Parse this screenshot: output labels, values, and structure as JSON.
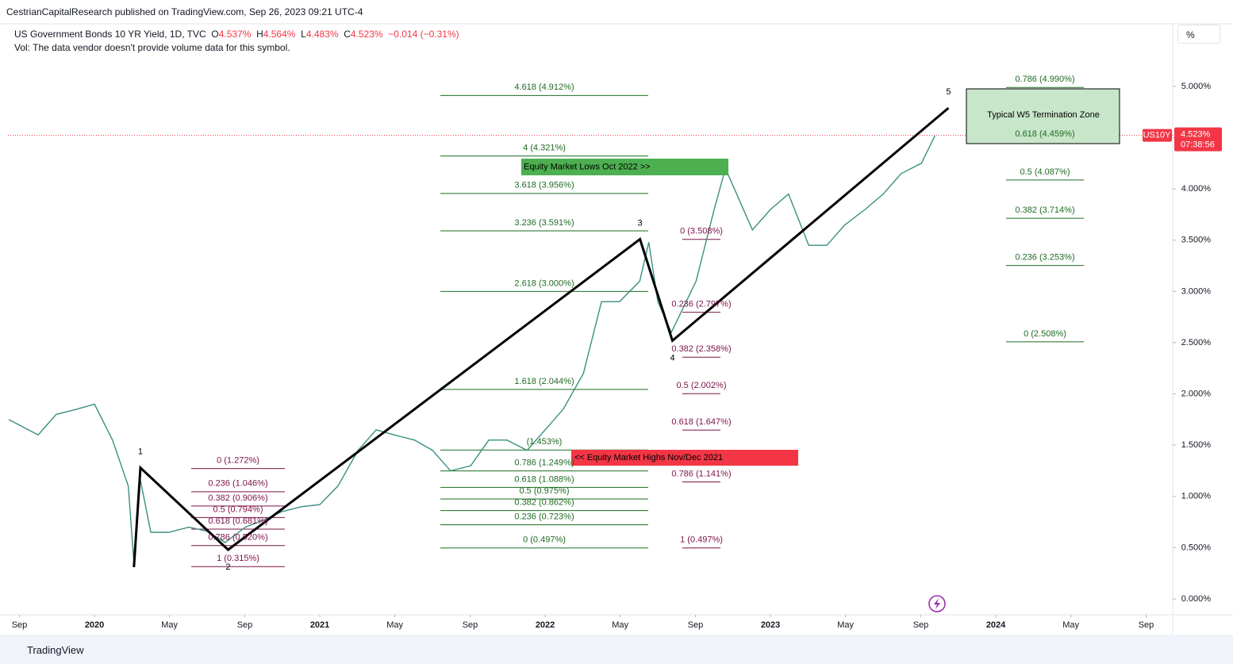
{
  "header": {
    "published": "CestrianCapitalResearch published on TradingView.com, Sep 26, 2023 09:21 UTC-4",
    "symbol": "US Government Bonds 10 YR Yield, 1D, TVC",
    "ohlc": [
      {
        "label": "O",
        "value": "4.537%"
      },
      {
        "label": "H",
        "value": "4.564%"
      },
      {
        "label": "L",
        "value": "4.483%"
      },
      {
        "label": "C",
        "value": "4.523%"
      }
    ],
    "change": "−0.014 (−0.31%)",
    "volume_note": "Vol: The data vendor doesn't provide volume data for this symbol."
  },
  "scale_button": "%",
  "footer": "TradingView",
  "chart_data": {
    "type": "line",
    "color": "#3a8f80",
    "x": [
      2019.62,
      2019.75,
      2019.83,
      2019.92,
      2020.0,
      2020.08,
      2020.15,
      2020.175,
      2020.2,
      2020.25,
      2020.33,
      2020.42,
      2020.5,
      2020.58,
      2020.67,
      2020.75,
      2020.83,
      2020.92,
      2021.0,
      2021.08,
      2021.17,
      2021.25,
      2021.33,
      2021.42,
      2021.5,
      2021.58,
      2021.67,
      2021.75,
      2021.83,
      2021.92,
      2022.0,
      2022.08,
      2022.17,
      2022.25,
      2022.33,
      2022.42,
      2022.46,
      2022.5,
      2022.56,
      2022.67,
      2022.75,
      2022.8,
      2022.83,
      2022.92,
      2023.0,
      2023.08,
      2023.17,
      2023.25,
      2023.33,
      2023.42,
      2023.5,
      2023.58,
      2023.67,
      2023.73
    ],
    "values": [
      1.75,
      1.6,
      1.8,
      1.85,
      1.9,
      1.55,
      1.1,
      0.35,
      1.2,
      0.65,
      0.65,
      0.7,
      0.66,
      0.55,
      0.7,
      0.77,
      0.85,
      0.9,
      0.92,
      1.1,
      1.45,
      1.65,
      1.6,
      1.55,
      1.45,
      1.25,
      1.3,
      1.55,
      1.55,
      1.45,
      1.65,
      1.85,
      2.2,
      2.9,
      2.9,
      3.1,
      3.48,
      2.9,
      2.6,
      3.1,
      3.8,
      4.2,
      4.05,
      3.6,
      3.8,
      3.95,
      3.45,
      3.45,
      3.65,
      3.8,
      3.95,
      4.15,
      4.25,
      4.52
    ],
    "last": {
      "value": 4.523,
      "label": "4.523%",
      "symbol": "US10Y",
      "countdown": "07:38:56"
    },
    "xlim": [
      2019.616,
      2024.785
    ],
    "ylim": [
      -0.155,
      5.611
    ],
    "grid": false,
    "xticks": [
      {
        "value": 2019.667,
        "label": "Sep"
      },
      {
        "value": 2020,
        "label": "2020"
      },
      {
        "value": 2020.333,
        "label": "May"
      },
      {
        "value": 2020.667,
        "label": "Sep"
      },
      {
        "value": 2021,
        "label": "2021"
      },
      {
        "value": 2021.333,
        "label": "May"
      },
      {
        "value": 2021.667,
        "label": "Sep"
      },
      {
        "value": 2022,
        "label": "2022"
      },
      {
        "value": 2022.333,
        "label": "May"
      },
      {
        "value": 2022.667,
        "label": "Sep"
      },
      {
        "value": 2023,
        "label": "2023"
      },
      {
        "value": 2023.333,
        "label": "May"
      },
      {
        "value": 2023.667,
        "label": "Sep"
      },
      {
        "value": 2024,
        "label": "2024"
      },
      {
        "value": 2024.333,
        "label": "May"
      },
      {
        "value": 2024.667,
        "label": "Sep"
      }
    ],
    "yticks": [
      {
        "value": 0,
        "label": "0.000%"
      },
      {
        "value": 0.5,
        "label": "0.500%"
      },
      {
        "value": 1,
        "label": "1.000%"
      },
      {
        "value": 1.5,
        "label": "1.500%"
      },
      {
        "value": 2,
        "label": "2.000%"
      },
      {
        "value": 2.5,
        "label": "2.500%"
      },
      {
        "value": 3,
        "label": "3.000%"
      },
      {
        "value": 3.5,
        "label": "3.500%"
      },
      {
        "value": 4,
        "label": "4.000%"
      },
      {
        "value": 4.5,
        "label": "4.500%"
      },
      {
        "value": 5,
        "label": "5.000%"
      }
    ],
    "waves": {
      "labels": [
        "1",
        "2",
        "3",
        "4",
        "5"
      ],
      "x": [
        2020.175,
        2020.204,
        2020.593,
        2022.421,
        2022.565,
        2023.79
      ],
      "values": [
        0.31,
        1.28,
        0.48,
        3.51,
        2.52,
        4.79
      ]
    },
    "fib_groups": [
      {
        "color": "#1e6b22",
        "levels": [
          {
            "label": "4.618 (4.912%)",
            "value": 4.912
          },
          {
            "label": "4 (4.321%)",
            "value": 4.321
          },
          {
            "label": "3.618 (3.956%)",
            "value": 3.956
          },
          {
            "label": "3.236 (3.591%)",
            "value": 3.591
          },
          {
            "label": "2.618 (3.000%)",
            "value": 3.0
          },
          {
            "label": "1.618 (2.044%)",
            "value": 2.044
          },
          {
            "label": "(1.453%)",
            "value": 1.453
          },
          {
            "label": "0.786 (1.249%)",
            "value": 1.249
          },
          {
            "label": "0.618 (1.088%)",
            "value": 1.088
          },
          {
            "label": "0.5 (0.975%)",
            "value": 0.975
          },
          {
            "label": "0.382 (0.862%)",
            "value": 0.862
          },
          {
            "label": "0.236 (0.723%)",
            "value": 0.723
          },
          {
            "label": "0 (0.497%)",
            "value": 0.497
          }
        ]
      },
      {
        "color": "#7b1246",
        "levels": [
          {
            "label": "0 (1.272%)",
            "value": 1.272
          },
          {
            "label": "0.236 (1.046%)",
            "value": 1.046
          },
          {
            "label": "0.382 (0.906%)",
            "value": 0.906
          },
          {
            "label": "0.5 (0.794%)",
            "value": 0.794
          },
          {
            "label": "0.618 (0.681%)",
            "value": 0.681
          },
          {
            "label": "0.786 (0.520%)",
            "value": 0.52
          },
          {
            "label": "1 (0.315%)",
            "value": 0.315
          }
        ]
      },
      {
        "color": "#7b1246",
        "levels": [
          {
            "label": "0 (3.508%)",
            "value": 3.508
          },
          {
            "label": "0.236 (2.797%)",
            "value": 2.797
          },
          {
            "label": "0.382 (2.358%)",
            "value": 2.358
          },
          {
            "label": "0.5 (2.002%)",
            "value": 2.002
          },
          {
            "label": "0.618 (1.647%)",
            "value": 1.647
          },
          {
            "label": "0.786 (1.141%)",
            "value": 1.141
          },
          {
            "label": "1 (0.497%)",
            "value": 0.497
          }
        ]
      },
      {
        "color": "#1e6b22",
        "levels": [
          {
            "label": "0.786 (4.990%)",
            "value": 4.99
          },
          {
            "label": "0.618 (4.459%)",
            "value": 4.459
          },
          {
            "label": "0.5 (4.087%)",
            "value": 4.087
          },
          {
            "label": "0.382 (3.714%)",
            "value": 3.714
          },
          {
            "label": "0.236 (3.253%)",
            "value": 3.253
          },
          {
            "label": "0 (2.508%)",
            "value": 2.508
          }
        ]
      }
    ],
    "annotations": [
      {
        "text": "Equity Market Lows Oct 2022 >>",
        "color": "#4caf50"
      },
      {
        "text": "<< Equity Market Highs Nov/Dec 2021",
        "color": "#f23645"
      },
      {
        "text": "Typical W5 Termination Zone",
        "color": "#c8e6c9"
      }
    ]
  }
}
